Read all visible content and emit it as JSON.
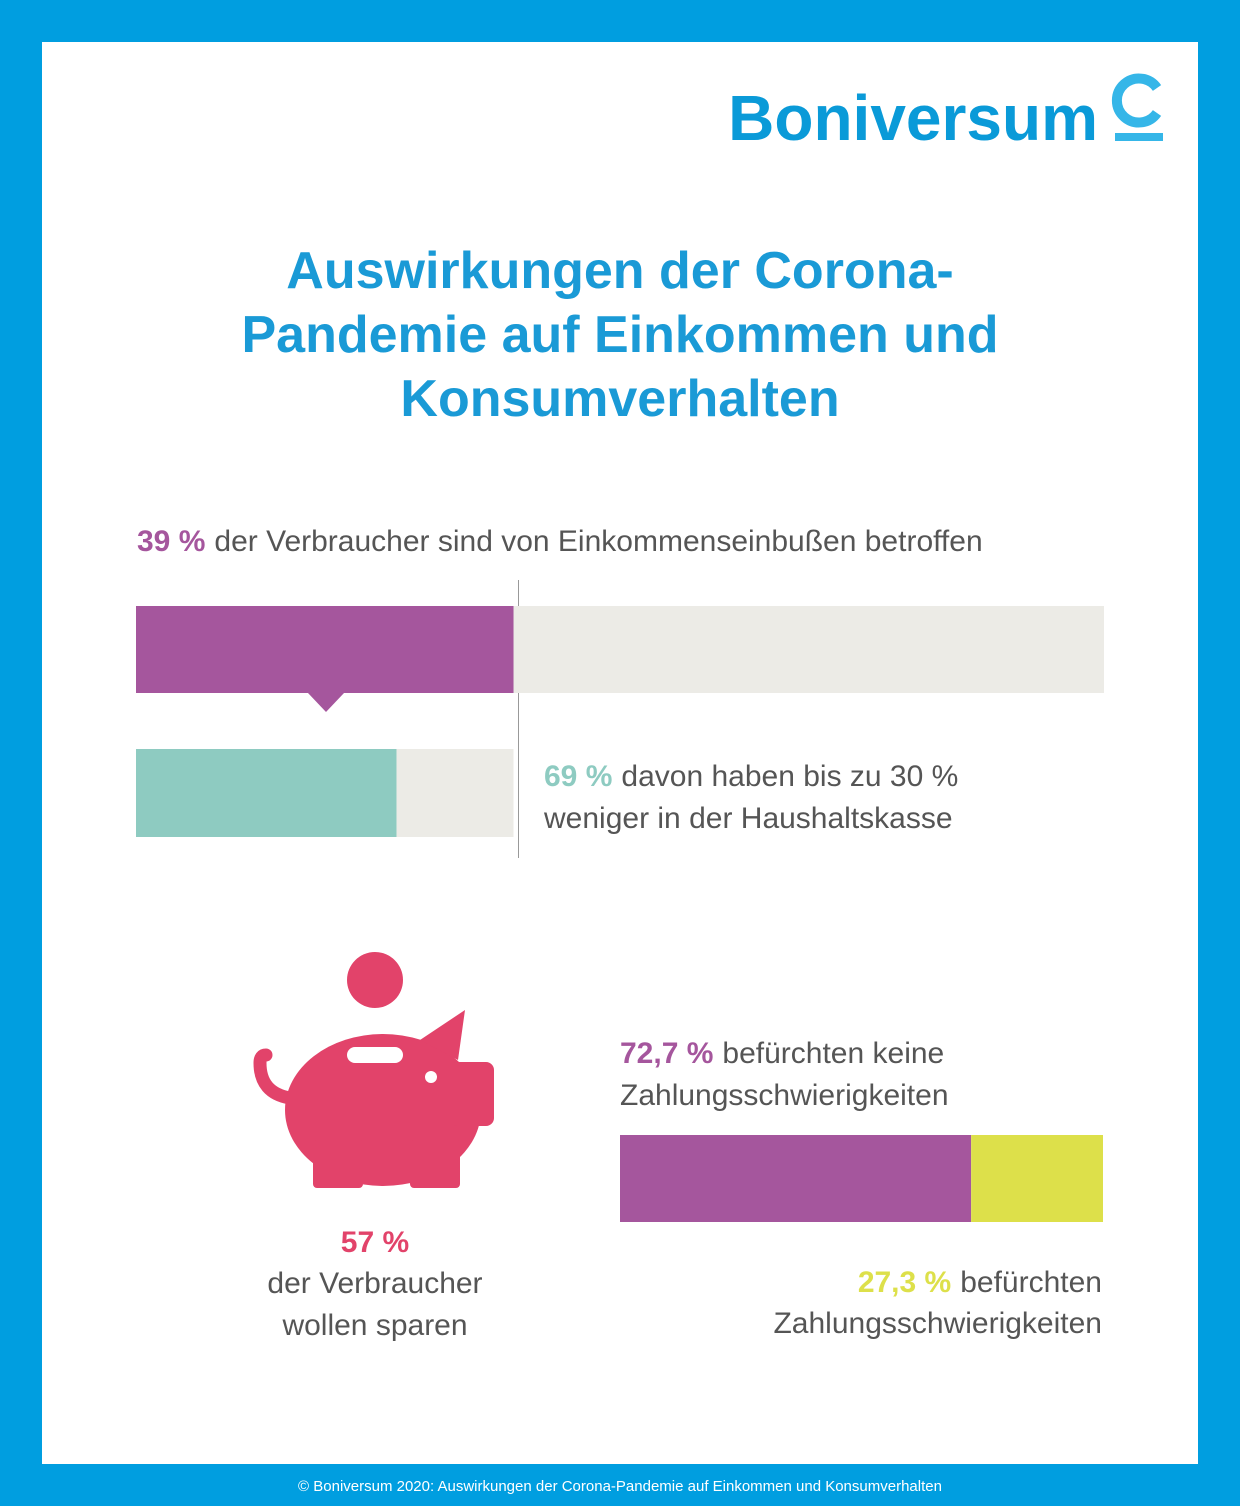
{
  "logo": "Boniversum",
  "title": [
    "Auswirkungen der Corona-",
    "Pandemie auf Einkommen und",
    "Konsumverhalten"
  ],
  "income_loss": {
    "stat": {
      "value": 39,
      "label": "39 %"
    },
    "lines": [
      "der Verbraucher sind von Einkommenseinbußen betroffen"
    ]
  },
  "income_drop": {
    "stat": {
      "value": 69,
      "label": "69 %"
    },
    "lines": [
      "davon haben bis zu 30 %",
      "weniger in der Haushaltskasse"
    ]
  },
  "saving": {
    "stat": {
      "value": 57,
      "label": "57 %"
    },
    "lines": [
      "der Verbraucher",
      "wollen sparen"
    ]
  },
  "no_difficulty": {
    "stat": {
      "value": 72.7,
      "label": "72,7 %"
    },
    "lines": [
      "befürchten keine",
      "Zahlungsschwierigkeiten"
    ]
  },
  "difficulty": {
    "stat": {
      "value": 27.3,
      "label": "27,3 %"
    },
    "lines": [
      "befürchten",
      "Zahlungsschwierigkeiten"
    ]
  },
  "footer": "© Boniversum 2020: Auswirkungen der Corona-Pandemie auf Einkommen und Konsumverhalten"
}
